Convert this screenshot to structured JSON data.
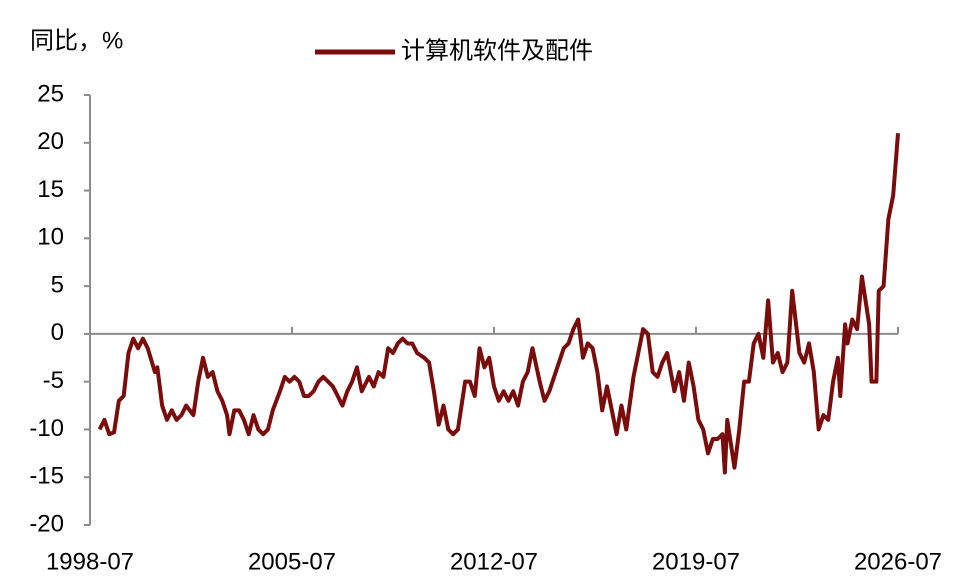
{
  "chart_data": {
    "type": "line",
    "y_label": "同比，%",
    "xlim": [
      "1998-07",
      "2026-07"
    ],
    "xticks": [
      "1998-07",
      "2005-07",
      "2012-07",
      "2019-07",
      "2026-07"
    ],
    "ylim": [
      -20,
      25
    ],
    "yticks": [
      25,
      20,
      15,
      10,
      5,
      0,
      -5,
      -10,
      -15,
      -20
    ],
    "x": [
      "1998-11",
      "1999-01",
      "1999-03",
      "1999-05",
      "1999-07",
      "1999-09",
      "1999-11",
      "2000-01",
      "2000-03",
      "2000-05",
      "2000-07",
      "2000-10",
      "2000-11",
      "2001-01",
      "2001-03",
      "2001-05",
      "2001-07",
      "2001-09",
      "2001-11",
      "2002-02",
      "2002-04",
      "2002-06",
      "2002-08",
      "2002-10",
      "2002-12",
      "2003-02",
      "2003-04",
      "2003-05",
      "2003-07",
      "2003-09",
      "2003-11",
      "2004-01",
      "2004-03",
      "2004-05",
      "2004-07",
      "2004-09",
      "2004-11",
      "2005-02",
      "2005-04",
      "2005-06",
      "2005-08",
      "2005-10",
      "2005-12",
      "2006-02",
      "2006-04",
      "2006-06",
      "2006-08",
      "2006-10",
      "2006-12",
      "2007-02",
      "2007-04",
      "2007-06",
      "2007-08",
      "2007-10",
      "2007-12",
      "2008-03",
      "2008-05",
      "2008-07",
      "2008-09",
      "2008-11",
      "2009-01",
      "2009-03",
      "2009-05",
      "2009-07",
      "2009-09",
      "2009-11",
      "2010-02",
      "2010-04",
      "2010-06",
      "2010-08",
      "2010-10",
      "2010-12",
      "2011-02",
      "2011-04",
      "2011-07",
      "2011-09",
      "2011-11",
      "2012-01",
      "2012-03",
      "2012-05",
      "2012-07",
      "2012-09",
      "2012-11",
      "2013-01",
      "2013-03",
      "2013-05",
      "2013-07",
      "2013-09",
      "2013-11",
      "2014-02",
      "2014-04",
      "2014-06",
      "2014-08",
      "2014-10",
      "2014-12",
      "2015-02",
      "2015-04",
      "2015-06",
      "2015-08",
      "2015-10",
      "2015-12",
      "2016-02",
      "2016-04",
      "2016-06",
      "2016-08",
      "2016-10",
      "2016-12",
      "2017-02",
      "2017-05",
      "2017-07",
      "2017-09",
      "2017-11",
      "2018-01",
      "2018-03",
      "2018-05",
      "2018-07",
      "2018-10",
      "2018-12",
      "2019-02",
      "2019-04",
      "2019-06",
      "2019-08",
      "2019-10",
      "2019-12",
      "2020-02",
      "2020-04",
      "2020-06",
      "2020-07",
      "2020-08",
      "2020-11",
      "2021-01",
      "2021-03",
      "2021-05",
      "2021-07",
      "2021-09",
      "2021-11",
      "2022-01",
      "2022-03",
      "2022-05",
      "2022-07",
      "2022-09",
      "2022-11",
      "2023-02",
      "2023-04",
      "2023-06",
      "2023-08",
      "2023-10",
      "2023-12",
      "2024-02",
      "2024-04",
      "2024-06",
      "2024-07",
      "2024-09",
      "2024-10",
      "2024-12",
      "2025-02",
      "2025-04",
      "2025-07",
      "2025-08",
      "2025-10",
      "2025-11",
      "2026-01",
      "2026-03",
      "2026-05",
      "2026-07"
    ],
    "series": [
      {
        "name": "计算机软件及配件",
        "color": "#7b0c0c",
        "values": [
          -10,
          -9,
          -10.5,
          -10.3,
          -7,
          -6.5,
          -2,
          -0.5,
          -1.5,
          -0.5,
          -1.5,
          -4,
          -3.5,
          -7.5,
          -9,
          -8,
          -9,
          -8.5,
          -7.5,
          -8.5,
          -5,
          -2.5,
          -4.5,
          -4,
          -6,
          -7,
          -8.5,
          -10.5,
          -8,
          -8,
          -9,
          -10.5,
          -8.5,
          -10,
          -10.5,
          -10,
          -8,
          -6,
          -4.5,
          -5,
          -4.5,
          -5,
          -6.5,
          -6.5,
          -6,
          -5,
          -4.5,
          -5,
          -5.5,
          -6.5,
          -7.5,
          -6,
          -5,
          -3.5,
          -6,
          -4.5,
          -5.5,
          -4,
          -4.5,
          -1.5,
          -2,
          -1,
          -0.5,
          -1,
          -1,
          -2,
          -2.5,
          -3,
          -6,
          -9.5,
          -7.5,
          -10,
          -10.5,
          -10,
          -5,
          -5,
          -6.5,
          -1.5,
          -3.5,
          -2.5,
          -5.5,
          -7,
          -6,
          -7,
          -6,
          -7.5,
          -5,
          -4,
          -1.5,
          -5,
          -7,
          -6,
          -4.5,
          -3,
          -1.5,
          -1,
          0.5,
          1.5,
          -2.5,
          -1,
          -1.5,
          -4,
          -8,
          -5.5,
          -8,
          -10.5,
          -7.5,
          -10,
          -4.5,
          -2,
          0.5,
          0,
          -4,
          -4.5,
          -3,
          -2,
          -6,
          -4,
          -7,
          -3,
          -5.5,
          -9,
          -10,
          -12.5,
          -11,
          -11,
          -10.5,
          -14.5,
          -9,
          -14,
          -10,
          -5,
          -5,
          -1,
          0,
          -2.5,
          3.5,
          -3,
          -2,
          -4,
          -3,
          4.5,
          -2,
          -3,
          -1,
          -4,
          -10,
          -8.5,
          -9,
          -5,
          -2.5,
          -6.5,
          1,
          -1,
          1.5,
          0.5,
          6,
          1,
          -5,
          -5,
          4.5,
          5,
          12,
          14.5,
          21
        ]
      }
    ]
  }
}
